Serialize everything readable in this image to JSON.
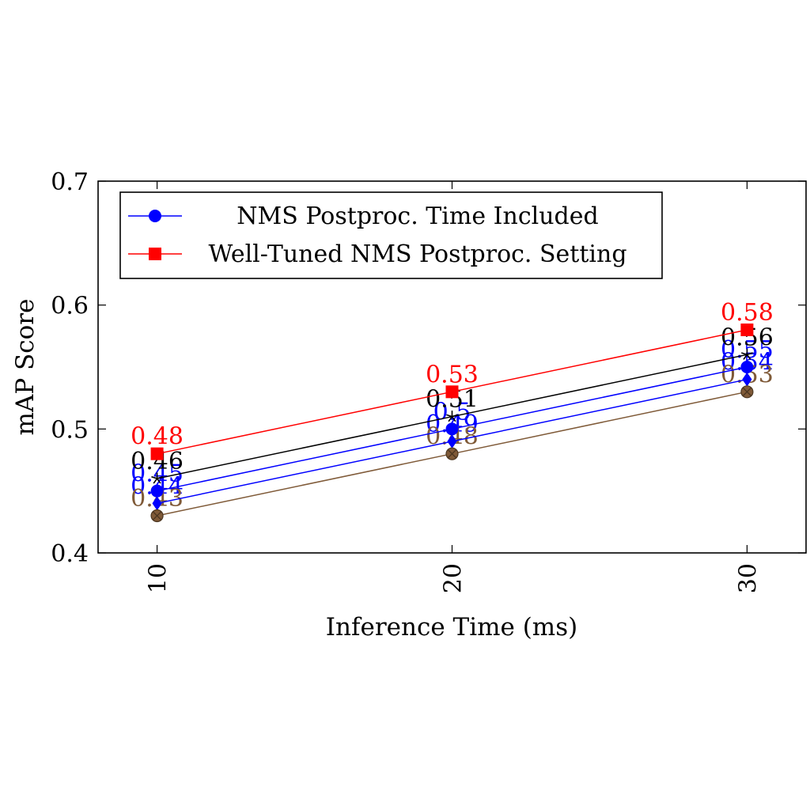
{
  "chart_data": {
    "type": "line",
    "title": "",
    "xlabel": "Inference Time (ms)",
    "ylabel": "mAP Score",
    "x": [
      10,
      20,
      30
    ],
    "xticks": [
      "10",
      "20",
      "30"
    ],
    "yticks": [
      "0.4",
      "0.5",
      "0.6",
      "0.7"
    ],
    "xlim": [
      8,
      32
    ],
    "ylim": [
      0.4,
      0.7
    ],
    "grid": false,
    "legend_position": "top-left",
    "series": [
      {
        "name": "NMS Postproc. Time Included",
        "values": [
          0.45,
          0.5,
          0.55
        ],
        "labels": [
          "0.45",
          "0.5",
          "0.55"
        ],
        "color": "#0000ff",
        "marker": "circle",
        "legend": true
      },
      {
        "name": "Well-Tuned NMS Postproc. Setting",
        "values": [
          0.48,
          0.53,
          0.58
        ],
        "labels": [
          "0.48",
          "0.53",
          "0.58"
        ],
        "color": "#ff0000",
        "marker": "square",
        "legend": true
      },
      {
        "values": [
          0.46,
          0.51,
          0.56
        ],
        "labels": [
          "0.46",
          "0.51",
          "0.56"
        ],
        "color": "#000000",
        "marker": "star",
        "legend": false
      },
      {
        "values": [
          0.44,
          0.49,
          0.54
        ],
        "labels": [
          "0.44",
          "0.49",
          "0.54"
        ],
        "color": "#0000ff",
        "marker": "diamond",
        "legend": false
      },
      {
        "values": [
          0.43,
          0.48,
          0.53
        ],
        "labels": [
          "0.43",
          "0.48",
          "0.53"
        ],
        "color": "#7f5a38",
        "marker": "otimes",
        "legend": false
      }
    ]
  }
}
